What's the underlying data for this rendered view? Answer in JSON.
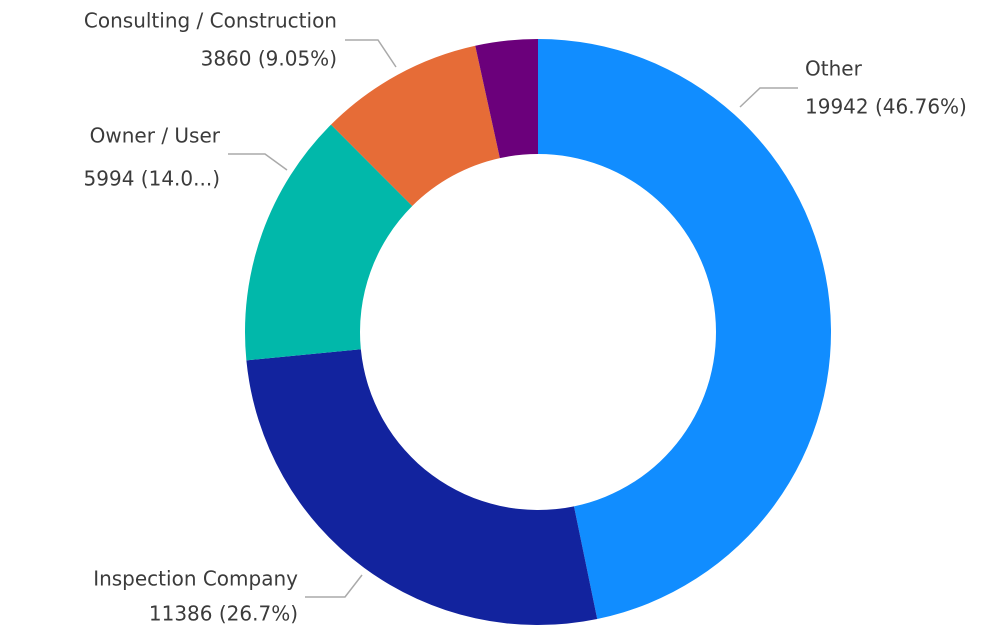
{
  "chart_data": {
    "type": "donut",
    "categories": [
      "Other",
      "Inspection Company",
      "Owner / User",
      "Consulting / Construction",
      null
    ],
    "values": [
      19942,
      11386,
      5994,
      3860,
      1465
    ],
    "value_labels": [
      "19942 (46.76%)",
      "11386 (26.7%)",
      "5994 (14.0...)",
      "3860 (9.05%)",
      null
    ],
    "colors": [
      "#118dff",
      "#12239e",
      "#01b8aa",
      "#e66c37",
      "#6b007b"
    ]
  }
}
